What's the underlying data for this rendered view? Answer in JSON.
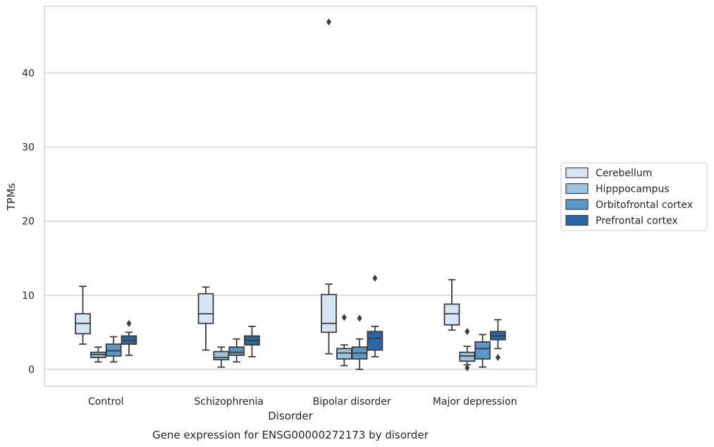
{
  "chart_data": {
    "type": "boxplot",
    "title": "Gene expression for ENSG00000272173 by disorder",
    "xlabel": "Disorder",
    "ylabel": "TPMs",
    "ylim": [
      -2.3,
      49
    ],
    "yticks": [
      0,
      10,
      20,
      30,
      40
    ],
    "grid": "horizontal",
    "legend_position": "outside-right",
    "categories": [
      "Control",
      "Schizophrenia",
      "Bipolar disorder",
      "Major depression"
    ],
    "series": [
      {
        "name": "Cerebellum",
        "color": "#d6e5f3",
        "boxes": [
          {
            "whisker_low": 3.4,
            "q1": 4.8,
            "median": 6.2,
            "q3": 7.5,
            "whisker_high": 11.2,
            "outliers": []
          },
          {
            "whisker_low": 2.6,
            "q1": 6.2,
            "median": 7.5,
            "q3": 10.2,
            "whisker_high": 11.1,
            "outliers": []
          },
          {
            "whisker_low": 2.1,
            "q1": 5.0,
            "median": 6.2,
            "q3": 10.1,
            "whisker_high": 11.5,
            "outliers": [
              46.9
            ]
          },
          {
            "whisker_low": 5.3,
            "q1": 6.0,
            "median": 7.5,
            "q3": 8.8,
            "whisker_high": 12.1,
            "outliers": []
          }
        ]
      },
      {
        "name": "Hipppocampus",
        "color": "#9ac3de",
        "boxes": [
          {
            "whisker_low": 1.0,
            "q1": 1.6,
            "median": 2.0,
            "q3": 2.3,
            "whisker_high": 3.0,
            "outliers": []
          },
          {
            "whisker_low": 0.3,
            "q1": 1.3,
            "median": 1.6,
            "q3": 2.4,
            "whisker_high": 3.0,
            "outliers": []
          },
          {
            "whisker_low": 0.5,
            "q1": 1.4,
            "median": 2.2,
            "q3": 2.8,
            "whisker_high": 3.3,
            "outliers": [
              7.0
            ]
          },
          {
            "whisker_low": 0.6,
            "q1": 1.1,
            "median": 1.8,
            "q3": 2.3,
            "whisker_high": 3.1,
            "outliers": [
              0.2,
              5.1
            ]
          }
        ]
      },
      {
        "name": "Orbitofrontal cortex",
        "color": "#5a98c8",
        "boxes": [
          {
            "whisker_low": 1.0,
            "q1": 1.8,
            "median": 2.5,
            "q3": 3.4,
            "whisker_high": 4.4,
            "outliers": []
          },
          {
            "whisker_low": 1.0,
            "q1": 1.9,
            "median": 2.3,
            "q3": 3.0,
            "whisker_high": 4.1,
            "outliers": []
          },
          {
            "whisker_low": 0.0,
            "q1": 1.4,
            "median": 2.2,
            "q3": 3.0,
            "whisker_high": 4.1,
            "outliers": [
              6.9
            ]
          },
          {
            "whisker_low": 0.3,
            "q1": 1.4,
            "median": 2.8,
            "q3": 3.7,
            "whisker_high": 4.7,
            "outliers": []
          }
        ]
      },
      {
        "name": "Prefrontal cortex",
        "color": "#2966a8",
        "boxes": [
          {
            "whisker_low": 1.9,
            "q1": 3.4,
            "median": 3.9,
            "q3": 4.5,
            "whisker_high": 5.0,
            "outliers": [
              6.2
            ]
          },
          {
            "whisker_low": 1.7,
            "q1": 3.3,
            "median": 3.9,
            "q3": 4.5,
            "whisker_high": 5.8,
            "outliers": []
          },
          {
            "whisker_low": 1.7,
            "q1": 2.6,
            "median": 4.2,
            "q3": 5.1,
            "whisker_high": 5.8,
            "outliers": [
              12.3
            ]
          },
          {
            "whisker_low": 2.8,
            "q1": 4.0,
            "median": 4.5,
            "q3": 5.1,
            "whisker_high": 6.7,
            "outliers": [
              1.6
            ]
          }
        ]
      }
    ]
  }
}
